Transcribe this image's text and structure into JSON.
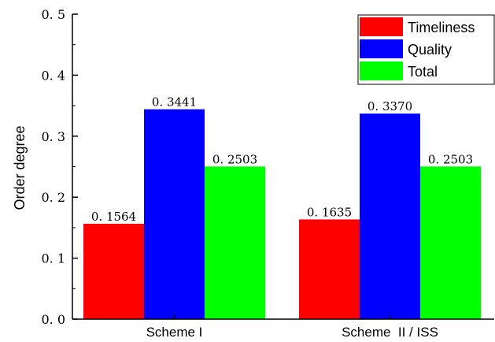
{
  "chart_data": {
    "type": "bar",
    "categories": [
      "Scheme I",
      "Scheme  II / ISS"
    ],
    "series": [
      {
        "name": "Timeliness",
        "values": [
          0.1564,
          0.1635
        ],
        "value_labels": [
          "0. 1564",
          "0. 1635"
        ],
        "color": "#ff0000"
      },
      {
        "name": "Quality",
        "values": [
          0.3441,
          0.337
        ],
        "value_labels": [
          "0. 3441",
          "0. 3370"
        ],
        "color": "#0000ff"
      },
      {
        "name": "Total",
        "values": [
          0.2503,
          0.2503
        ],
        "value_labels": [
          "0. 2503",
          "0. 2503"
        ],
        "color": "#00ff00"
      }
    ],
    "ylabel": "Order degree",
    "xlabel": "",
    "ylim": [
      0,
      0.5
    ],
    "yticks": [
      0,
      0.1,
      0.2,
      0.3,
      0.4,
      0.5
    ],
    "ytick_labels": [
      "0. 0",
      "0. 1",
      "0. 2",
      "0. 3",
      "0. 4",
      "0. 5"
    ],
    "legend_position": "top-right",
    "grid": false
  }
}
